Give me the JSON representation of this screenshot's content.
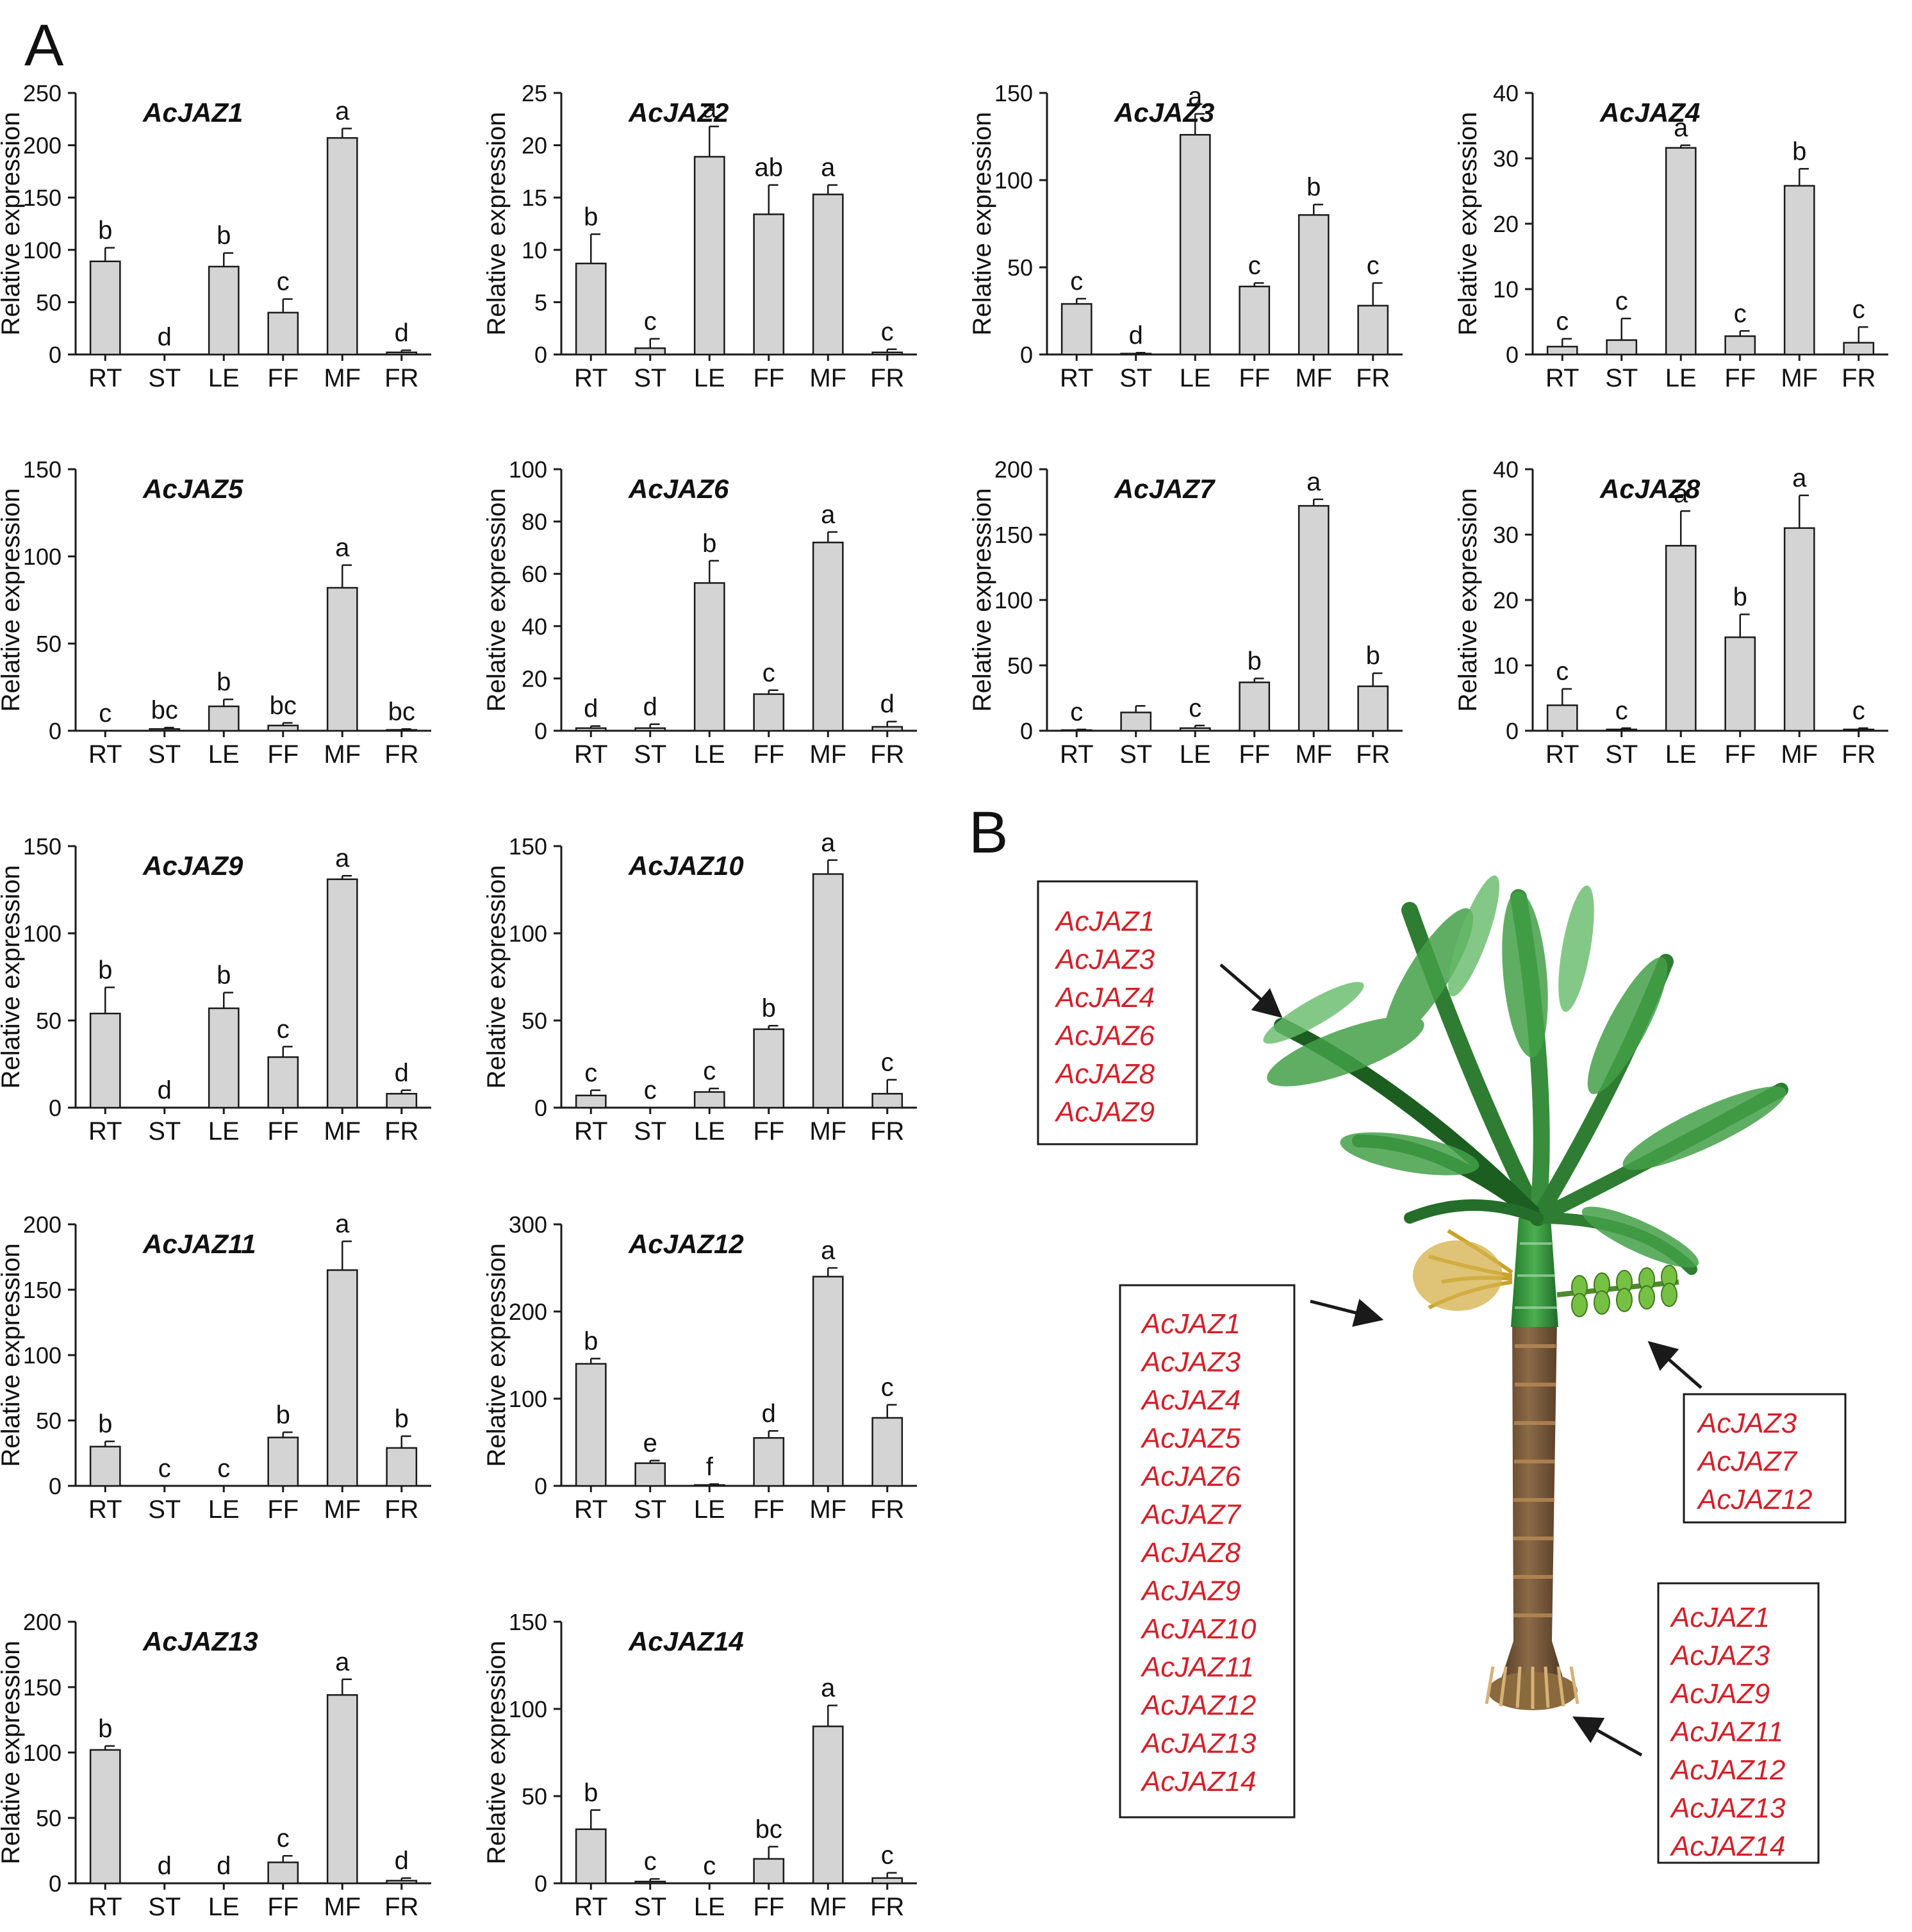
{
  "figure": {
    "panel_a_letter": "A",
    "panel_b_letter": "B",
    "y_axis_label": "Relative expression",
    "bar_color": "#d4d4d4"
  },
  "chart_data": [
    {
      "type": "bar",
      "title": "AcJAZ1",
      "ylabel": "Relative expression",
      "categories": [
        "RT",
        "ST",
        "LE",
        "FF",
        "MF",
        "FR"
      ],
      "ylim": [
        0,
        250
      ],
      "ticks": [
        0,
        50,
        100,
        150,
        200,
        250
      ],
      "values": [
        89,
        0,
        84,
        40,
        207,
        2
      ],
      "errors": [
        13,
        0,
        13,
        13,
        9,
        2
      ],
      "letters": [
        "b",
        "d",
        "b",
        "c",
        "a",
        "d"
      ]
    },
    {
      "type": "bar",
      "title": "AcJAZ2",
      "ylabel": "Relative expression",
      "categories": [
        "RT",
        "ST",
        "LE",
        "FF",
        "MF",
        "FR"
      ],
      "ylim": [
        0,
        25
      ],
      "ticks": [
        0,
        5,
        10,
        15,
        20,
        25
      ],
      "values": [
        8.7,
        0.6,
        18.9,
        13.4,
        15.3,
        0.2
      ],
      "errors": [
        2.8,
        0.9,
        2.9,
        2.8,
        0.9,
        0.3
      ],
      "letters": [
        "b",
        "c",
        "a",
        "ab",
        "a",
        "c"
      ]
    },
    {
      "type": "bar",
      "title": "AcJAZ3",
      "ylabel": "Relative expression",
      "categories": [
        "RT",
        "ST",
        "LE",
        "FF",
        "MF",
        "FR"
      ],
      "ylim": [
        0,
        150
      ],
      "ticks": [
        0,
        50,
        100,
        150
      ],
      "values": [
        29,
        0.5,
        126,
        39,
        80,
        28
      ],
      "errors": [
        3,
        0.5,
        12,
        2,
        6,
        13
      ],
      "letters": [
        "c",
        "d",
        "a",
        "c",
        "b",
        "c"
      ]
    },
    {
      "type": "bar",
      "title": "AcJAZ4",
      "ylabel": "Relative expression",
      "categories": [
        "RT",
        "ST",
        "LE",
        "FF",
        "MF",
        "FR"
      ],
      "ylim": [
        0,
        40
      ],
      "ticks": [
        0,
        10,
        20,
        30,
        40
      ],
      "values": [
        1.2,
        2.2,
        31.6,
        2.8,
        25.8,
        1.8
      ],
      "errors": [
        1.2,
        3.3,
        0.4,
        0.8,
        2.6,
        2.4
      ],
      "letters": [
        "c",
        "c",
        "a",
        "c",
        "b",
        "c"
      ]
    },
    {
      "type": "bar",
      "title": "AcJAZ5",
      "ylabel": "Relative expression",
      "categories": [
        "RT",
        "ST",
        "LE",
        "FF",
        "MF",
        "FR"
      ],
      "ylim": [
        0,
        150
      ],
      "ticks": [
        0,
        50,
        100,
        150
      ],
      "values": [
        0,
        1,
        14,
        3,
        82,
        0.5
      ],
      "errors": [
        0,
        0.8,
        4,
        1.5,
        13,
        0.5
      ],
      "letters": [
        "c",
        "bc",
        "b",
        "bc",
        "a",
        "bc"
      ]
    },
    {
      "type": "bar",
      "title": "AcJAZ6",
      "ylabel": "Relative expression",
      "categories": [
        "RT",
        "ST",
        "LE",
        "FF",
        "MF",
        "FR"
      ],
      "ylim": [
        0,
        100
      ],
      "ticks": [
        0,
        20,
        40,
        60,
        80,
        100
      ],
      "values": [
        1,
        1,
        56.5,
        14,
        72,
        1.5
      ],
      "errors": [
        0.8,
        1.5,
        8.5,
        1.5,
        4,
        2
      ],
      "letters": [
        "d",
        "d",
        "b",
        "c",
        "a",
        "d"
      ]
    },
    {
      "type": "bar",
      "title": "AcJAZ7",
      "ylabel": "Relative expression",
      "categories": [
        "RT",
        "ST",
        "LE",
        "FF",
        "MF",
        "FR"
      ],
      "ylim": [
        0,
        200
      ],
      "ticks": [
        0,
        50,
        100,
        150,
        200
      ],
      "values": [
        0.5,
        14,
        2,
        37,
        172,
        34
      ],
      "errors": [
        0.5,
        5,
        2,
        3,
        5,
        10
      ],
      "letters": [
        "c",
        "",
        "c",
        "b",
        "a",
        "b"
      ]
    },
    {
      "type": "bar",
      "title": "AcJAZ8",
      "ylabel": "Relative expression",
      "categories": [
        "RT",
        "ST",
        "LE",
        "FF",
        "MF",
        "FR"
      ],
      "ylim": [
        0,
        40
      ],
      "ticks": [
        0,
        10,
        20,
        30,
        40
      ],
      "values": [
        3.9,
        0.2,
        28.3,
        14.3,
        31,
        0.2
      ],
      "errors": [
        2.5,
        0.2,
        5.3,
        3.5,
        5,
        0.2
      ],
      "letters": [
        "c",
        "c",
        "a",
        "b",
        "a",
        "c"
      ]
    },
    {
      "type": "bar",
      "title": "AcJAZ9",
      "ylabel": "Relative expression",
      "categories": [
        "RT",
        "ST",
        "LE",
        "FF",
        "MF",
        "FR"
      ],
      "ylim": [
        0,
        150
      ],
      "ticks": [
        0,
        50,
        100,
        150
      ],
      "values": [
        54,
        0,
        57,
        29,
        131,
        8
      ],
      "errors": [
        15,
        0,
        9,
        6,
        2,
        2
      ],
      "letters": [
        "b",
        "d",
        "b",
        "c",
        "a",
        "d"
      ]
    },
    {
      "type": "bar",
      "title": "AcJAZ10",
      "ylabel": "Relative expression",
      "categories": [
        "RT",
        "ST",
        "LE",
        "FF",
        "MF",
        "FR"
      ],
      "ylim": [
        0,
        150
      ],
      "ticks": [
        0,
        50,
        100,
        150
      ],
      "values": [
        7,
        0,
        9,
        45,
        134,
        8
      ],
      "errors": [
        3,
        0,
        2,
        2,
        8,
        8
      ],
      "letters": [
        "c",
        "c",
        "c",
        "b",
        "a",
        "c"
      ]
    },
    {
      "type": "bar",
      "title": "AcJAZ11",
      "ylabel": "Relative expression",
      "categories": [
        "RT",
        "ST",
        "LE",
        "FF",
        "MF",
        "FR"
      ],
      "ylim": [
        0,
        200
      ],
      "ticks": [
        0,
        50,
        100,
        150,
        200
      ],
      "values": [
        30,
        0,
        0,
        37,
        165,
        29
      ],
      "errors": [
        4,
        0,
        0,
        4,
        22,
        9
      ],
      "letters": [
        "b",
        "c",
        "c",
        "b",
        "a",
        "b"
      ]
    },
    {
      "type": "bar",
      "title": "AcJAZ12",
      "ylabel": "Relative expression",
      "categories": [
        "RT",
        "ST",
        "LE",
        "FF",
        "MF",
        "FR"
      ],
      "ylim": [
        0,
        300
      ],
      "ticks": [
        0,
        100,
        200,
        300
      ],
      "values": [
        140,
        26,
        1,
        55,
        240,
        78
      ],
      "errors": [
        6,
        3,
        1,
        8,
        10,
        15
      ],
      "letters": [
        "b",
        "e",
        "f",
        "d",
        "a",
        "c"
      ]
    },
    {
      "type": "bar",
      "title": "AcJAZ13",
      "ylabel": "Relative expression",
      "categories": [
        "RT",
        "ST",
        "LE",
        "FF",
        "MF",
        "FR"
      ],
      "ylim": [
        0,
        200
      ],
      "ticks": [
        0,
        50,
        100,
        150,
        200
      ],
      "values": [
        102,
        0,
        0,
        16,
        144,
        2
      ],
      "errors": [
        3,
        0,
        0,
        5,
        12,
        2
      ],
      "letters": [
        "b",
        "d",
        "d",
        "c",
        "a",
        "d"
      ]
    },
    {
      "type": "bar",
      "title": "AcJAZ14",
      "ylabel": "Relative expression",
      "categories": [
        "RT",
        "ST",
        "LE",
        "FF",
        "MF",
        "FR"
      ],
      "ylim": [
        0,
        150
      ],
      "ticks": [
        0,
        50,
        100,
        150
      ],
      "values": [
        31,
        1,
        0,
        14,
        90,
        3
      ],
      "errors": [
        11,
        1.5,
        0,
        7,
        12,
        3
      ],
      "letters": [
        "b",
        "c",
        "c",
        "bc",
        "a",
        "c"
      ]
    }
  ],
  "palm": {
    "leaf_genes": [
      "AcJAZ1",
      "AcJAZ3",
      "AcJAZ4",
      "AcJAZ6",
      "AcJAZ8",
      "AcJAZ9"
    ],
    "flower_genes": [
      "AcJAZ1",
      "AcJAZ3",
      "AcJAZ4",
      "AcJAZ5",
      "AcJAZ6",
      "AcJAZ7",
      "AcJAZ8",
      "AcJAZ9",
      "AcJAZ10",
      "AcJAZ11",
      "AcJAZ12",
      "AcJAZ13",
      "AcJAZ14"
    ],
    "fruit_genes": [
      "AcJAZ3",
      "AcJAZ7",
      "AcJAZ12"
    ],
    "root_genes": [
      "AcJAZ1",
      "AcJAZ3",
      "AcJAZ9",
      "AcJAZ11",
      "AcJAZ12",
      "AcJAZ13",
      "AcJAZ14"
    ],
    "gene_color": "#d4202a"
  }
}
